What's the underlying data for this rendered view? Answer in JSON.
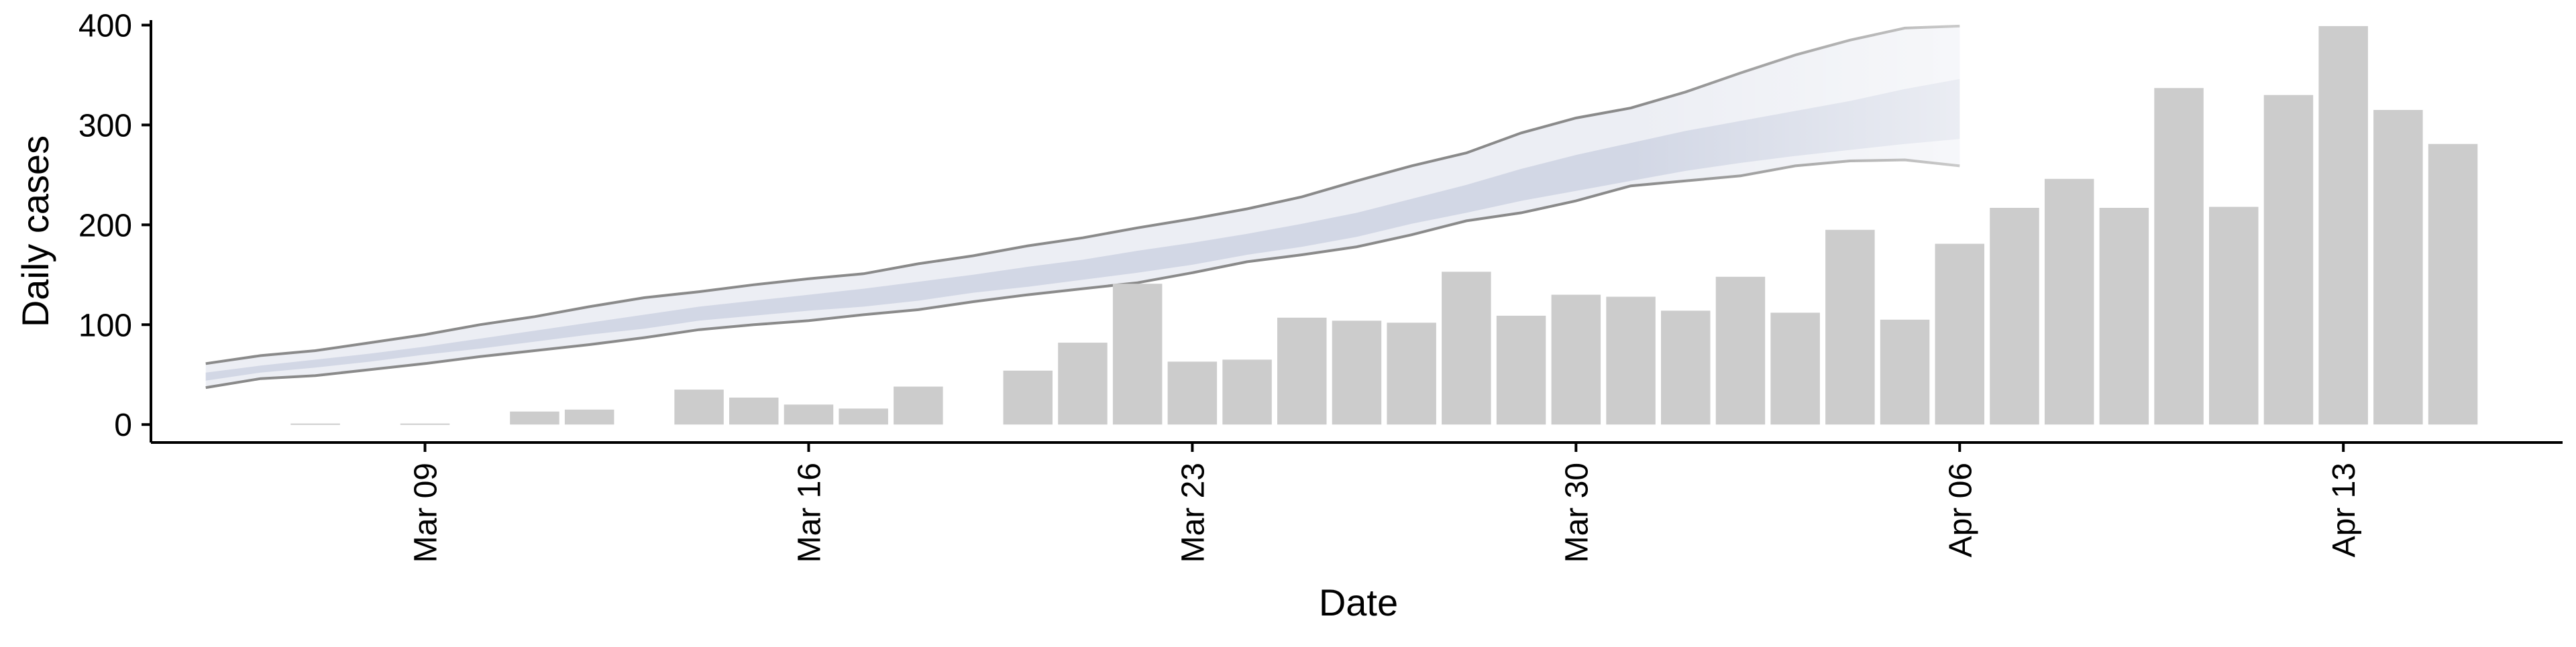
{
  "chart_data": {
    "type": "bar",
    "title": "",
    "xlabel": "Date",
    "ylabel": "Daily cases",
    "ylim": [
      -18,
      405
    ],
    "yticks": [
      0,
      100,
      200,
      300,
      400
    ],
    "xticks": [
      {
        "x": "2020-03-09",
        "label": "Mar 09"
      },
      {
        "x": "2020-03-16",
        "label": "Mar 16"
      },
      {
        "x": "2020-03-23",
        "label": "Mar 23"
      },
      {
        "x": "2020-03-30",
        "label": "Mar 30"
      },
      {
        "x": "2020-04-06",
        "label": "Apr 06"
      },
      {
        "x": "2020-04-13",
        "label": "Apr 13"
      }
    ],
    "xlim": [
      "2020-03-04",
      "2020-04-17"
    ],
    "grid": false,
    "legend": "none",
    "colors": {
      "bars": "#cccccc",
      "band_outer": "#e6e8f0",
      "band_inner": "#cfd4e3",
      "band_line": "#8a8a8a"
    },
    "series": [
      {
        "type": "bar",
        "points": [
          {
            "x": "2020-03-07",
            "y": 1
          },
          {
            "x": "2020-03-09",
            "y": 1
          },
          {
            "x": "2020-03-11",
            "y": 13
          },
          {
            "x": "2020-03-12",
            "y": 15
          },
          {
            "x": "2020-03-14",
            "y": 35
          },
          {
            "x": "2020-03-15",
            "y": 27
          },
          {
            "x": "2020-03-16",
            "y": 20
          },
          {
            "x": "2020-03-17",
            "y": 16
          },
          {
            "x": "2020-03-18",
            "y": 38
          },
          {
            "x": "2020-03-20",
            "y": 54
          },
          {
            "x": "2020-03-21",
            "y": 82
          },
          {
            "x": "2020-03-22",
            "y": 141
          },
          {
            "x": "2020-03-23",
            "y": 63
          },
          {
            "x": "2020-03-24",
            "y": 65
          },
          {
            "x": "2020-03-25",
            "y": 107
          },
          {
            "x": "2020-03-26",
            "y": 104
          },
          {
            "x": "2020-03-27",
            "y": 102
          },
          {
            "x": "2020-03-28",
            "y": 153
          },
          {
            "x": "2020-03-29",
            "y": 109
          },
          {
            "x": "2020-03-30",
            "y": 130
          },
          {
            "x": "2020-03-31",
            "y": 128
          },
          {
            "x": "2020-04-01",
            "y": 114
          },
          {
            "x": "2020-04-02",
            "y": 148
          },
          {
            "x": "2020-04-03",
            "y": 112
          },
          {
            "x": "2020-04-04",
            "y": 195
          },
          {
            "x": "2020-04-05",
            "y": 105
          },
          {
            "x": "2020-04-06",
            "y": 181
          },
          {
            "x": "2020-04-07",
            "y": 217
          },
          {
            "x": "2020-04-08",
            "y": 246
          },
          {
            "x": "2020-04-09",
            "y": 217
          },
          {
            "x": "2020-04-10",
            "y": 337
          },
          {
            "x": "2020-04-11",
            "y": 218
          },
          {
            "x": "2020-04-12",
            "y": 330
          },
          {
            "x": "2020-04-13",
            "y": 399
          },
          {
            "x": "2020-04-14",
            "y": 315
          },
          {
            "x": "2020-04-15",
            "y": 281
          }
        ]
      },
      {
        "type": "interval_band",
        "x": [
          "2020-03-05",
          "2020-03-06",
          "2020-03-07",
          "2020-03-08",
          "2020-03-09",
          "2020-03-10",
          "2020-03-11",
          "2020-03-12",
          "2020-03-13",
          "2020-03-14",
          "2020-03-15",
          "2020-03-16",
          "2020-03-17",
          "2020-03-18",
          "2020-03-19",
          "2020-03-20",
          "2020-03-21",
          "2020-03-22",
          "2020-03-23",
          "2020-03-24",
          "2020-03-25",
          "2020-03-26",
          "2020-03-27",
          "2020-03-28",
          "2020-03-29",
          "2020-03-30",
          "2020-03-31",
          "2020-04-01",
          "2020-04-02",
          "2020-04-03",
          "2020-04-04",
          "2020-04-05",
          "2020-04-06"
        ],
        "lower_90": [
          37,
          46,
          49,
          55,
          61,
          68,
          74,
          80,
          87,
          95,
          100,
          104,
          110,
          115,
          123,
          130,
          136,
          142,
          152,
          163,
          170,
          178,
          190,
          204,
          212,
          224,
          239,
          244,
          249,
          259,
          264,
          265,
          259
        ],
        "upper_90": [
          61,
          69,
          74,
          82,
          90,
          100,
          108,
          118,
          127,
          133,
          140,
          146,
          151,
          161,
          169,
          179,
          187,
          197,
          206,
          216,
          228,
          244,
          259,
          272,
          292,
          307,
          317,
          333,
          352,
          370,
          385,
          397,
          399
        ],
        "lower_50": [
          44,
          52,
          57,
          63,
          70,
          76,
          83,
          90,
          96,
          104,
          109,
          114,
          118,
          124,
          132,
          138,
          145,
          152,
          160,
          170,
          178,
          188,
          201,
          212,
          224,
          234,
          244,
          254,
          262,
          269,
          275,
          281,
          286
        ],
        "upper_50": [
          52,
          59,
          65,
          71,
          78,
          86,
          94,
          102,
          110,
          118,
          124,
          130,
          136,
          143,
          150,
          158,
          165,
          174,
          182,
          191,
          201,
          212,
          226,
          240,
          256,
          270,
          282,
          294,
          304,
          314,
          324,
          336,
          346
        ],
        "projection_from": "2020-03-31"
      }
    ]
  }
}
